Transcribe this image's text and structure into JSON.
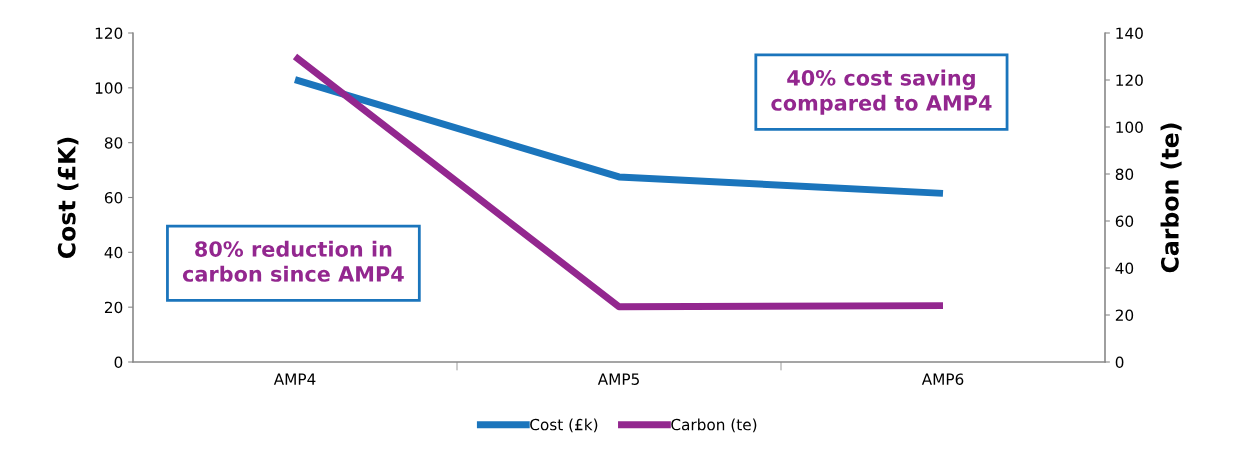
{
  "chart_data": {
    "type": "line",
    "categories": [
      "AMP4",
      "AMP5",
      "AMP6"
    ],
    "ylabel": "Cost (£K)",
    "y2label": "Carbon (te)",
    "series": [
      {
        "name": "Cost (£k)",
        "color": "#1b75bc",
        "values": [
          103,
          67.5,
          61.5
        ]
      },
      {
        "name": "Carbon (te)",
        "color": "#93278f",
        "values": [
          130,
          23.5,
          24
        ],
        "axis": "y2"
      }
    ],
    "ylim": [
      0,
      120
    ],
    "yticks": [
      0,
      20,
      40,
      60,
      80,
      100,
      120
    ],
    "y2lim": [
      0,
      140
    ],
    "y2ticks": [
      0,
      20,
      40,
      60,
      80,
      100,
      120,
      140
    ],
    "annotations": [
      "40% cost saving\ncompared to AMP4",
      "80% reduction in\ncarbon since AMP4"
    ],
    "grid": false,
    "legend": "bottom",
    "marker": "none",
    "line_style": "solid"
  }
}
